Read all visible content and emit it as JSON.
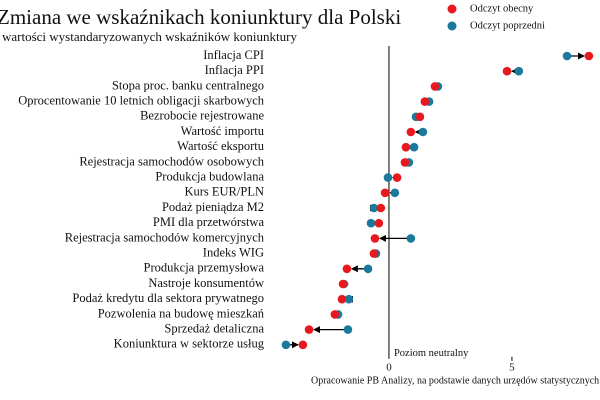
{
  "chart_data": {
    "type": "dumbbell",
    "title": "Zmiana we wskaźnikach koniunktury dla Polski",
    "subtitle": "wartości wystandaryzowanych wskaźników koniunktury",
    "categories": [
      "Inflacja CPI",
      "Inflacja PPI",
      "Stopa proc. banku centralnego",
      "Oprocentowanie 10 letnich obligacji skarbowych",
      "Bezrobocie rejestrowane",
      "Wartość importu",
      "Wartość eksportu",
      "Rejestracja samochodów osobowych",
      "Produkcja budowlana",
      "Kurs EUR/PLN",
      "Podaż pieniądza M2",
      "PMI dla przetwórstwa",
      "Rejestracja samochodów komercyjnych",
      "Indeks WIG",
      "Produkcja przemysłowa",
      "Nastroje konsumentów",
      "Podaż kredytu dla sektora prywatnego",
      "Pozwolenia na budowę mieszkań",
      "Sprzedaż detaliczna",
      "Koniunktura w sektorze usług"
    ],
    "series": [
      {
        "name": "Odczyt obecny",
        "color": "#e8191e",
        "values": [
          8.13,
          4.8,
          1.87,
          1.46,
          1.26,
          0.89,
          0.69,
          0.65,
          0.33,
          -0.16,
          -0.33,
          -0.41,
          -0.57,
          -0.61,
          -1.71,
          -1.87,
          -1.91,
          -2.2,
          -3.25,
          -3.5
        ]
      },
      {
        "name": "Odczyt poprzedni",
        "color": "#1b7a9c",
        "values": [
          7.24,
          5.28,
          1.99,
          1.63,
          1.1,
          1.38,
          1.02,
          0.81,
          -0.04,
          0.24,
          -0.61,
          -0.73,
          0.89,
          -0.53,
          -0.85,
          -1.83,
          -1.63,
          -2.07,
          -1.67,
          -4.19
        ]
      }
    ],
    "xlim": [
      -5,
      8.5
    ],
    "xticks": [
      0,
      5
    ],
    "annotation": "Poziom neutralny",
    "source": "Opracowanie PB Analizy, na podstawie danych urzędów statystycznych"
  }
}
